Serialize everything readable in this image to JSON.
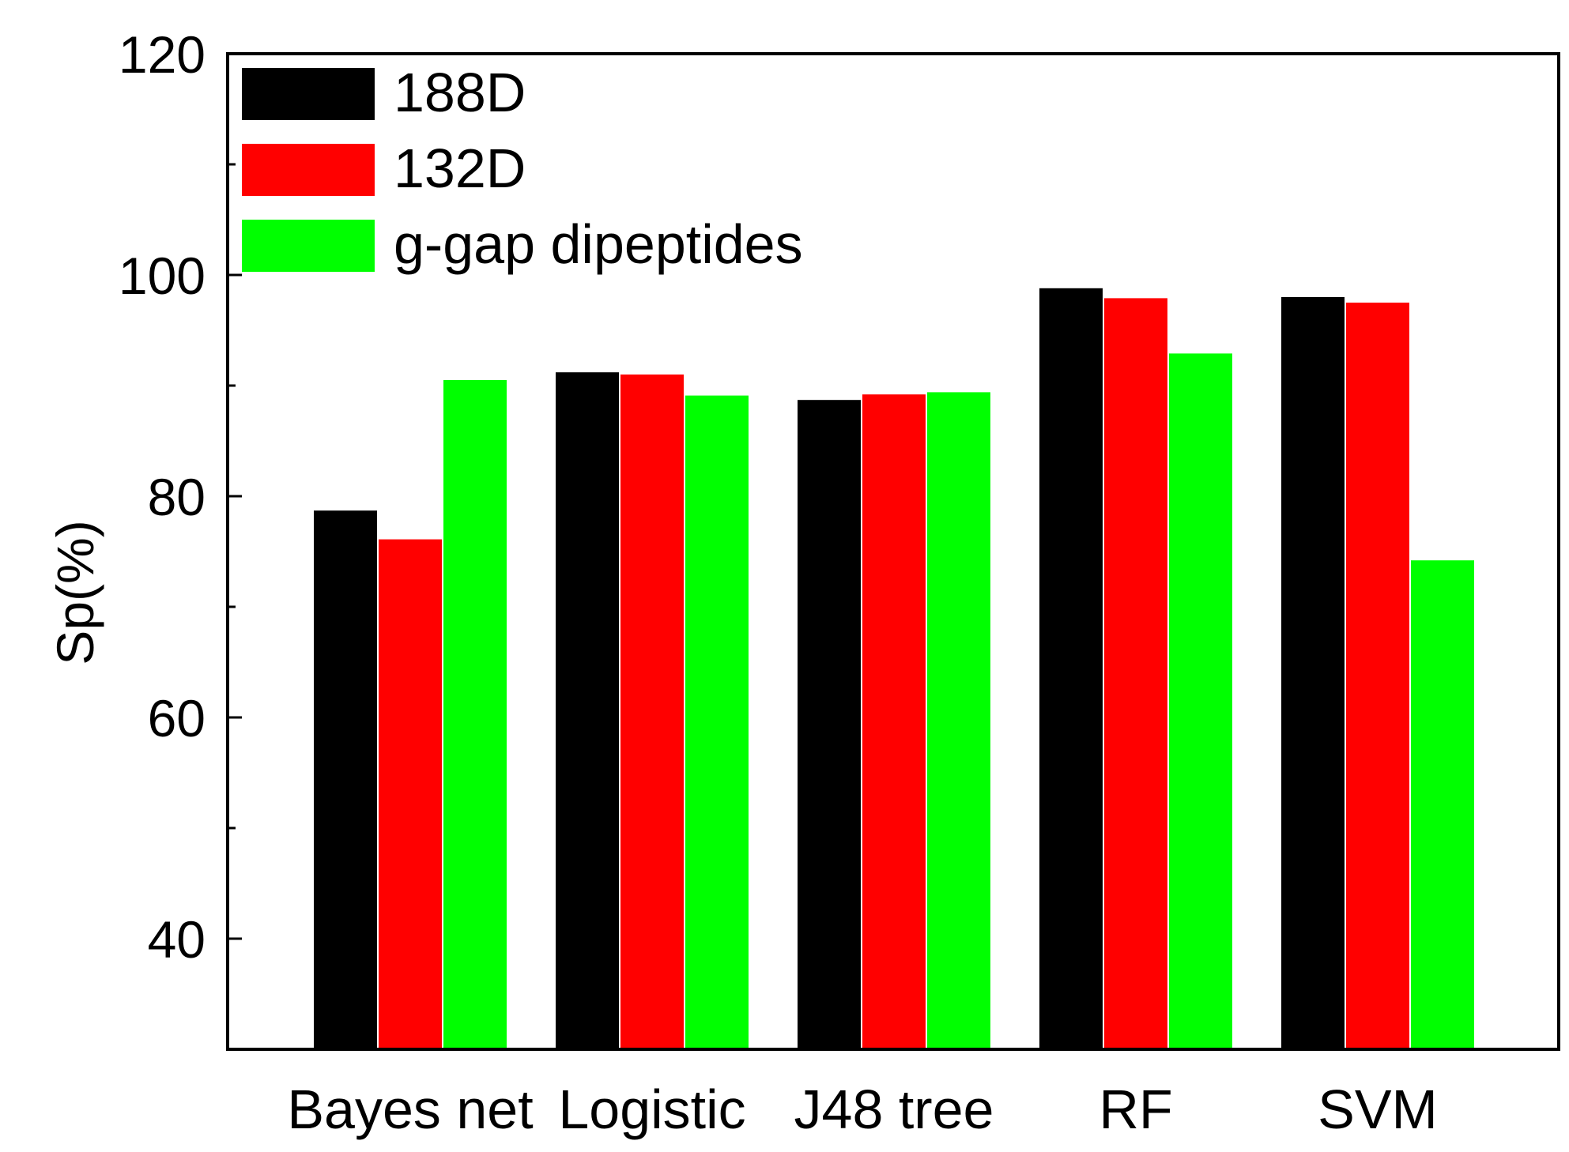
{
  "chart_data": {
    "type": "bar",
    "ylabel": "Sp(%)",
    "xlabel": "",
    "ylim": [
      30,
      120
    ],
    "yticks": [
      40,
      60,
      80,
      100,
      120
    ],
    "yminor_ticks": [
      50,
      70,
      90,
      110
    ],
    "grid": false,
    "legend_position": "top-left",
    "categories": [
      "Bayes net",
      "Logistic",
      "J48 tree",
      "RF",
      "SVM"
    ],
    "series": [
      {
        "name": "188D",
        "color": "#000000",
        "values": [
          78.7,
          91.2,
          88.7,
          98.8,
          98.0
        ]
      },
      {
        "name": "132D",
        "color": "#ff0000",
        "values": [
          76.1,
          91.0,
          89.2,
          97.9,
          97.5
        ]
      },
      {
        "name": "g-gap dipeptides",
        "color": "#00ff00",
        "values": [
          90.5,
          89.1,
          89.4,
          92.9,
          74.2
        ]
      }
    ]
  }
}
